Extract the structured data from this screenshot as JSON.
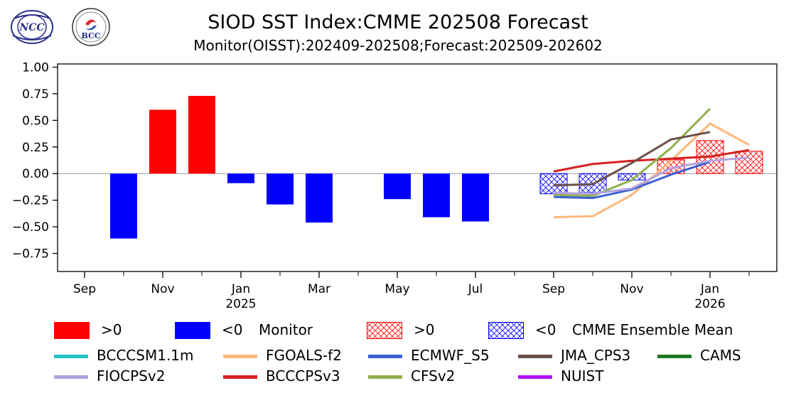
{
  "header": {
    "title": "SIOD SST Index:CMME 202508 Forecast",
    "subtitle": "Monitor(OISST):202409-202508;Forecast:202509-202602"
  },
  "logos": [
    {
      "name": "NCC",
      "text": "NCC",
      "color": "#2a2f8f"
    },
    {
      "name": "BCC",
      "text": "BCC",
      "color": "#1f2f86"
    }
  ],
  "chart_data": {
    "type": "bar",
    "ylim": [
      -0.92,
      1.03
    ],
    "yticks": [
      -0.75,
      -0.5,
      -0.25,
      0.0,
      0.25,
      0.5,
      0.75,
      1.0
    ],
    "ytick_labels": [
      "−0.75",
      "−0.50",
      "−0.25",
      "0.00",
      "0.25",
      "0.50",
      "0.75",
      "1.00"
    ],
    "months": [
      "2024-08",
      "2024-09",
      "2024-10",
      "2024-11",
      "2024-12",
      "2025-01",
      "2025-02",
      "2025-03",
      "2025-04",
      "2025-05",
      "2025-06",
      "2025-07",
      "2025-08",
      "2025-09",
      "2025-10",
      "2025-11",
      "2025-12",
      "2026-01",
      "2026-02",
      "2026-03"
    ],
    "xtick_labels": [
      {
        "month": "2024-09",
        "label": "Sep",
        "year": ""
      },
      {
        "month": "2024-11",
        "label": "Nov",
        "year": ""
      },
      {
        "month": "2025-01",
        "label": "Jan",
        "year": "2025"
      },
      {
        "month": "2025-03",
        "label": "Mar",
        "year": ""
      },
      {
        "month": "2025-05",
        "label": "May",
        "year": ""
      },
      {
        "month": "2025-07",
        "label": "Jul",
        "year": ""
      },
      {
        "month": "2025-09",
        "label": "Sep",
        "year": ""
      },
      {
        "month": "2025-11",
        "label": "Nov",
        "year": ""
      },
      {
        "month": "2026-01",
        "label": "Jan",
        "year": "2026"
      }
    ],
    "monitor": {
      "months": [
        "2024-10",
        "2024-11",
        "2024-12",
        "2025-01",
        "2025-02",
        "2025-03",
        "2025-05",
        "2025-06",
        "2025-07"
      ],
      "values": [
        -0.61,
        0.6,
        0.73,
        -0.09,
        -0.29,
        -0.46,
        -0.24,
        -0.41,
        -0.45
      ]
    },
    "ensemble_mean": {
      "months": [
        "2025-09",
        "2025-10",
        "2025-11",
        "2025-12",
        "2026-01",
        "2026-02"
      ],
      "values": [
        -0.19,
        -0.18,
        -0.06,
        0.13,
        0.31,
        0.21
      ]
    },
    "series": [
      {
        "name": "FGOALS-f2",
        "color": "#fdb77a",
        "months": [
          "2025-09",
          "2025-10",
          "2025-11",
          "2025-12",
          "2026-01",
          "2026-02"
        ],
        "values": [
          -0.41,
          -0.4,
          -0.2,
          0.12,
          0.47,
          0.27
        ]
      },
      {
        "name": "BCCCPSv3",
        "color": "#d62020",
        "months": [
          "2025-09",
          "2025-10",
          "2025-11",
          "2025-12",
          "2026-01",
          "2026-02"
        ],
        "values": [
          0.02,
          0.09,
          0.12,
          0.14,
          0.16,
          0.22
        ]
      },
      {
        "name": "ECMWF_S5",
        "color": "#3a60d6",
        "months": [
          "2025-09",
          "2025-10",
          "2025-11",
          "2025-12",
          "2026-01"
        ],
        "values": [
          -0.22,
          -0.23,
          -0.15,
          -0.01,
          0.11
        ]
      },
      {
        "name": "CFSv2",
        "color": "#8fb04f",
        "months": [
          "2025-09",
          "2025-10",
          "2025-11",
          "2025-12",
          "2026-01"
        ],
        "values": [
          -0.2,
          -0.21,
          -0.06,
          0.24,
          0.61
        ]
      },
      {
        "name": "JMA_CPS3",
        "color": "#6b4f4a",
        "months": [
          "2025-09",
          "2025-10",
          "2025-11",
          "2025-12",
          "2026-01"
        ],
        "values": [
          -0.11,
          -0.1,
          0.1,
          0.32,
          0.39
        ]
      },
      {
        "name": "FIOCPSv2",
        "color": "#b3a2e0",
        "months": [
          "2025-09",
          "2025-10",
          "2025-11",
          "2025-12",
          "2026-01",
          "2026-02"
        ],
        "values": [
          -0.18,
          -0.19,
          -0.14,
          0.05,
          0.12,
          0.15
        ]
      }
    ]
  },
  "legend": {
    "row1": [
      {
        "label": ">0",
        "kind": "solid",
        "color": "#ff0000"
      },
      {
        "label": "<0",
        "kind": "solid",
        "color": "#0000ff",
        "suffix": "Monitor"
      },
      {
        "label": ">0",
        "kind": "hatch",
        "color": "#ff0000"
      },
      {
        "label": "<0",
        "kind": "hatch",
        "color": "#0000ff",
        "suffix": "CMME Ensemble Mean"
      }
    ],
    "row2": [
      {
        "label": "BCCCSM1.1m",
        "color": "#1fc3c8"
      },
      {
        "label": "FGOALS-f2",
        "color": "#fdb77a"
      },
      {
        "label": "ECMWF_S5",
        "color": "#3a60d6"
      },
      {
        "label": "JMA_CPS3",
        "color": "#6b4f4a"
      },
      {
        "label": "CAMS",
        "color": "#1f7a1f"
      }
    ],
    "row3": [
      {
        "label": "FIOCPSv2",
        "color": "#b3a2e0"
      },
      {
        "label": "BCCCPSv3",
        "color": "#d62020"
      },
      {
        "label": "CFSv2",
        "color": "#8fb04f"
      },
      {
        "label": "NUIST",
        "color": "#b70ff0"
      }
    ]
  }
}
